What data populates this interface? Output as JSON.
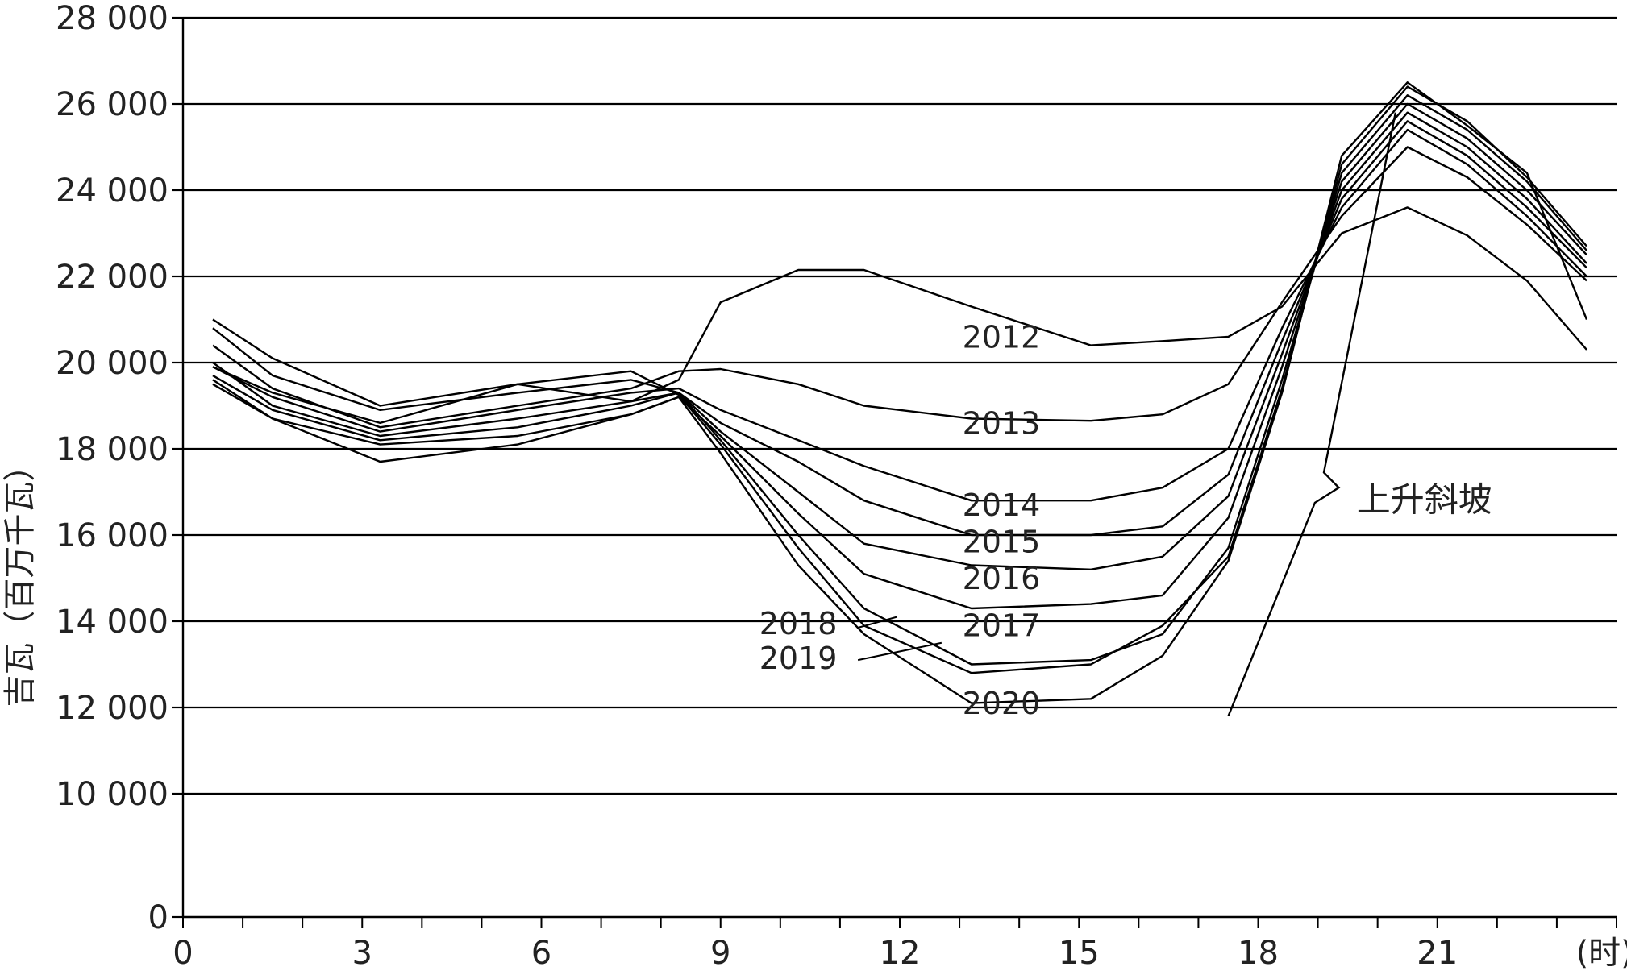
{
  "chart_data": {
    "type": "line",
    "title": "",
    "xlabel": "",
    "x_unit_label": "(时)",
    "ylabel": "吉瓦（百万千瓦）",
    "xlim": [
      0,
      24
    ],
    "ylim": [
      0,
      28000
    ],
    "x_ticks": [
      0,
      3,
      6,
      9,
      12,
      15,
      18,
      21
    ],
    "x_minor_step": 1,
    "y_ticks": [
      {
        "value": 0,
        "label": "0"
      },
      {
        "value": 10000,
        "label": "10 000"
      },
      {
        "value": 12000,
        "label": "12 000"
      },
      {
        "value": 14000,
        "label": "14 000"
      },
      {
        "value": 16000,
        "label": "16 000"
      },
      {
        "value": 18000,
        "label": "18 000"
      },
      {
        "value": 20000,
        "label": "20 000"
      },
      {
        "value": 22000,
        "label": "22 000"
      },
      {
        "value": 24000,
        "label": "24 000"
      },
      {
        "value": 26000,
        "label": "26 000"
      },
      {
        "value": 28000,
        "label": "28 000"
      }
    ],
    "y_axis_break": "between 0 and 10 000",
    "grid": "horizontal",
    "x": [
      0.5,
      1.5,
      3.3,
      5.6,
      7.5,
      8.3,
      9.0,
      10.3,
      11.4,
      13.2,
      15.2,
      16.4,
      17.5,
      18.4,
      19.4,
      20.5,
      21.5,
      22.5,
      23.5
    ],
    "series": [
      {
        "name": "2012",
        "values": [
          19900,
          19300,
          18600,
          19500,
          19100,
          19600,
          21400,
          22150,
          22150,
          21300,
          20400,
          20500,
          20600,
          21300,
          23000,
          23600,
          22950,
          21900,
          20300
        ]
      },
      {
        "name": "2013",
        "values": [
          20400,
          19400,
          18500,
          19000,
          19400,
          19800,
          19850,
          19500,
          19000,
          18700,
          18650,
          18800,
          19500,
          21400,
          23400,
          25000,
          24300,
          23200,
          21900
        ]
      },
      {
        "name": "2014",
        "values": [
          19900,
          19200,
          18400,
          18900,
          19300,
          19400,
          18900,
          18200,
          17600,
          16800,
          16800,
          17100,
          18000,
          20800,
          23600,
          25400,
          24600,
          23400,
          22000
        ]
      },
      {
        "name": "2015",
        "values": [
          20000,
          19000,
          18300,
          18700,
          19100,
          19300,
          18600,
          17700,
          16800,
          16000,
          16000,
          16200,
          17400,
          20500,
          23800,
          25600,
          24800,
          23600,
          22200
        ]
      },
      {
        "name": "2016",
        "values": [
          19700,
          18900,
          18200,
          18500,
          19000,
          19300,
          18400,
          17000,
          15800,
          15300,
          15200,
          15500,
          16900,
          20200,
          24000,
          25800,
          25000,
          23800,
          22300
        ]
      },
      {
        "name": "2017",
        "values": [
          19600,
          18700,
          18100,
          18300,
          18800,
          19200,
          18300,
          16500,
          15100,
          14300,
          14400,
          14600,
          16400,
          19900,
          24200,
          26000,
          25200,
          24000,
          22500
        ]
      },
      {
        "name": "2018",
        "values": [
          20800,
          19700,
          18900,
          19300,
          19600,
          19300,
          18200,
          16000,
          14300,
          13000,
          13100,
          13700,
          15700,
          19600,
          24400,
          26200,
          25400,
          24200,
          22600
        ]
      },
      {
        "name": "2019",
        "values": [
          21000,
          20100,
          19000,
          19500,
          19800,
          19250,
          18100,
          15700,
          13900,
          12800,
          13000,
          13900,
          15500,
          19400,
          24600,
          26400,
          25600,
          24300,
          22700
        ]
      },
      {
        "name": "2020",
        "values": [
          19500,
          18700,
          17700,
          18100,
          18800,
          19200,
          17900,
          15300,
          13700,
          12100,
          12200,
          13200,
          15400,
          19300,
          24800,
          26500,
          25500,
          24400,
          21000
        ]
      }
    ],
    "series_labels": [
      {
        "text": "2012",
        "x": 13.7,
        "y": 20350
      },
      {
        "text": "2013",
        "x": 13.7,
        "y": 18350
      },
      {
        "text": "2014",
        "x": 13.7,
        "y": 16450
      },
      {
        "text": "2015",
        "x": 13.7,
        "y": 15600
      },
      {
        "text": "2016",
        "x": 13.7,
        "y": 14750
      },
      {
        "text": "2017",
        "x": 13.7,
        "y": 13650
      },
      {
        "text": "2018",
        "x": 10.3,
        "y": 13700
      },
      {
        "text": "2019",
        "x": 10.3,
        "y": 12900
      },
      {
        "text": "2020",
        "x": 13.7,
        "y": 11850
      }
    ],
    "label_leaders": [
      {
        "from": [
          11.3,
          13850
        ],
        "to": [
          11.95,
          14100
        ]
      },
      {
        "from": [
          11.3,
          13100
        ],
        "to": [
          12.7,
          13500
        ]
      }
    ],
    "annotations": [
      {
        "text": "上升斜坡",
        "x": 19.65,
        "y": 16550,
        "leader": [
          [
            17.5,
            11800
          ],
          [
            18.95,
            16750
          ],
          [
            19.35,
            17100
          ],
          [
            19.1,
            17450
          ],
          [
            20.3,
            25800
          ]
        ]
      }
    ]
  }
}
